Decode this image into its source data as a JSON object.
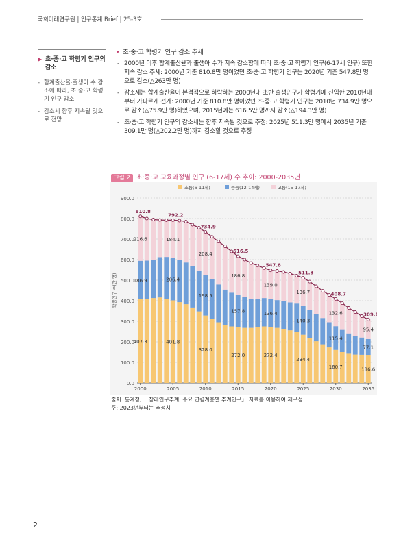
{
  "header": {
    "title": "국회미래연구원 | 인구통계 Brief | 25-3호"
  },
  "sidebar": {
    "heading": "초·중·고 학령기 인구의 감소",
    "items": [
      "합계출산율·출생아 수 감소에 따라, 초·중·고 학령기 인구 감소",
      "감소세 향후 지속될 것으로 전망"
    ]
  },
  "body": {
    "heading": "초·중·고 학령기 인구 감소 추세",
    "items": [
      "2000년 이후 합계출산율과 출생아 수가 지속 감소함에 따라 초·중·고 학령기 인구(6-17세 인구) 또한 지속 감소 추세: 2000년 기준 810.8만 명이었던 초·중·고 학령기 인구는 2020년 기준 547.8만 명으로 감소(△263만 명)",
      "감소세는 합계출산율이 본격적으로 하락하는 2000년대 초반 출생인구가 학령기에 진입한 2010년대부터 가파르게 전개: 2000년 기준 810.8만 명이었던 초·중·고 학령기 인구는 2010년 734.9만 명으로 감소(△75.9만 명)하였으며, 2015년에는 616.5만 명까지 감소(△194.3만 명)",
      "초·중·고 학령기 인구의 감소세는 향후 지속될 것으로 추정: 2025년 511.3만 명에서 2035년 기준 309.1만 명(△202.2만 명)까지 감소할 것으로 추정"
    ]
  },
  "figure": {
    "label": "그림 2"
  },
  "chart_data": {
    "type": "stacked_bar_line",
    "title": "초·중·고 교육과정별 인구 (6-17세) 수 추이: 2000-2035년",
    "y_label": "학령인구 수(만 명)",
    "grid": true,
    "legend": "top",
    "x": [
      2000,
      2001,
      2002,
      2003,
      2004,
      2005,
      2006,
      2007,
      2008,
      2009,
      2010,
      2011,
      2012,
      2013,
      2014,
      2015,
      2016,
      2017,
      2018,
      2019,
      2020,
      2021,
      2022,
      2023,
      2024,
      2025,
      2026,
      2027,
      2028,
      2029,
      2030,
      2031,
      2032,
      2033,
      2034,
      2035
    ],
    "xlim": [
      1999.5,
      2035.5
    ],
    "xticks": [
      2000,
      2005,
      2010,
      2015,
      2020,
      2025,
      2030,
      2035
    ],
    "ylim": [
      0,
      900
    ],
    "yticks": [
      {
        "value": 0,
        "label": "0.0"
      },
      {
        "value": 100,
        "label": "100.0"
      },
      {
        "value": 200,
        "label": "200.0"
      },
      {
        "value": 300,
        "label": "300.0"
      },
      {
        "value": 400,
        "label": "400.0"
      },
      {
        "value": 500,
        "label": "500.0"
      },
      {
        "value": 600,
        "label": "600.0"
      },
      {
        "value": 700,
        "label": "700.0"
      },
      {
        "value": 800,
        "label": "800.0"
      },
      {
        "value": 900,
        "label": "900.0"
      }
    ],
    "series": [
      {
        "name": "초등(6-11세)",
        "color": "#f7c772",
        "values": [
          407.3,
          410,
          413,
          416,
          410,
          401.8,
          393,
          383,
          367,
          348,
          328.0,
          313,
          295,
          280,
          275,
          272.0,
          268,
          268,
          272,
          275,
          272.4,
          268,
          263,
          256,
          247,
          234.4,
          218,
          203,
          188,
          173,
          160.7,
          150,
          142,
          138,
          137,
          136.6
        ],
        "value_labels": [
          "407.3",
          null,
          null,
          null,
          null,
          "401.8",
          null,
          null,
          null,
          null,
          "328.0",
          null,
          null,
          null,
          null,
          "272.0",
          null,
          null,
          null,
          null,
          "272.4",
          null,
          null,
          null,
          null,
          "234.4",
          null,
          null,
          null,
          null,
          "160.7",
          null,
          null,
          null,
          null,
          "136.6"
        ]
      },
      {
        "name": "중등(12-14세)",
        "color": "#6f9fd9",
        "values": [
          186.9,
          185,
          187,
          196,
          203,
          206.4,
          206,
          203,
          200,
          199,
          198.5,
          192,
          184,
          174,
          164,
          157.8,
          150,
          140,
          138,
          138,
          136.4,
          135,
          135,
          136,
          139,
          140.3,
          138,
          133,
          128,
          122,
          115.4,
          108,
          99,
          92,
          84,
          77.1
        ],
        "value_labels": [
          "186.9",
          null,
          null,
          null,
          null,
          "206.4",
          null,
          null,
          null,
          null,
          "198.5",
          null,
          null,
          null,
          null,
          "157.8",
          null,
          null,
          null,
          null,
          "136.4",
          null,
          null,
          null,
          null,
          "140.3",
          null,
          null,
          null,
          null,
          "115.4",
          null,
          null,
          null,
          null,
          "77.1"
        ]
      },
      {
        "name": "고등(15-17세)",
        "color": "#f3d2d9",
        "values": [
          216.6,
          205,
          195,
          181,
          179,
          184.1,
          191,
          199,
          203,
          208,
          208.4,
          206,
          209,
          211,
          201,
          186.8,
          182,
          175,
          161,
          146,
          139.0,
          142,
          142,
          140,
          136,
          136.7,
          137,
          134,
          132,
          133,
          132.6,
          130,
          124,
          115,
          104,
          95.4
        ],
        "value_labels": [
          "216.6",
          null,
          null,
          null,
          null,
          "184.1",
          null,
          null,
          null,
          null,
          "208.4",
          null,
          null,
          null,
          null,
          "186.8",
          null,
          null,
          null,
          null,
          "139.0",
          null,
          null,
          null,
          null,
          "136.7",
          null,
          null,
          null,
          null,
          "132.6",
          null,
          null,
          null,
          null,
          "95.4"
        ]
      }
    ],
    "total": {
      "color": "#8a2c52",
      "values": [
        810.8,
        800,
        795,
        793,
        792,
        792.2,
        790,
        785,
        770,
        755,
        734.9,
        711,
        688,
        665,
        640,
        616.5,
        600,
        583,
        571,
        559,
        547.8,
        545,
        540,
        532,
        522,
        511.3,
        493,
        470,
        448,
        428,
        408.7,
        388,
        365,
        345,
        325,
        309.1
      ],
      "value_labels": [
        "810.8",
        null,
        null,
        null,
        null,
        "792.2",
        null,
        null,
        null,
        null,
        "734.9",
        null,
        null,
        null,
        null,
        "616.5",
        null,
        null,
        null,
        null,
        "547.8",
        null,
        null,
        null,
        null,
        "511.3",
        null,
        null,
        null,
        null,
        "408.7",
        null,
        null,
        null,
        null,
        "309.1"
      ]
    }
  },
  "footnotes": [
    "출처: 통계청, 「장래인구추계, 주요 연령계층별 추계인구」 자료를 이용하여 재구성",
    "주: 2023년부터는 추정치"
  ],
  "page_number": "2"
}
